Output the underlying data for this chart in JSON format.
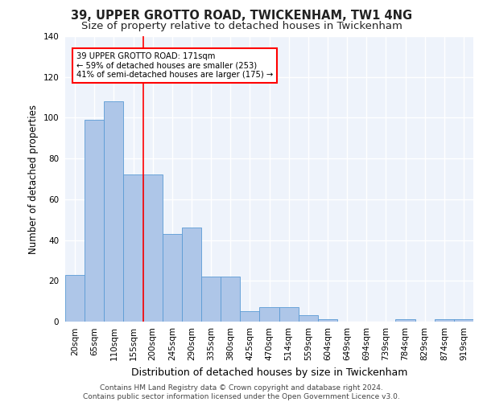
{
  "title_line1": "39, UPPER GROTTO ROAD, TWICKENHAM, TW1 4NG",
  "title_line2": "Size of property relative to detached houses in Twickenham",
  "xlabel": "Distribution of detached houses by size in Twickenham",
  "ylabel": "Number of detached properties",
  "bar_values": [
    23,
    99,
    108,
    72,
    72,
    43,
    46,
    22,
    22,
    5,
    7,
    7,
    3,
    1,
    0,
    0,
    0,
    1,
    0,
    1,
    1
  ],
  "bar_labels": [
    "20sqm",
    "65sqm",
    "110sqm",
    "155sqm",
    "200sqm",
    "245sqm",
    "290sqm",
    "335sqm",
    "380sqm",
    "425sqm",
    "470sqm",
    "514sqm",
    "559sqm",
    "604sqm",
    "649sqm",
    "694sqm",
    "739sqm",
    "784sqm",
    "829sqm",
    "874sqm",
    "919sqm"
  ],
  "bar_color": "#aec6e8",
  "bar_edge_color": "#5b9bd5",
  "background_color": "#eef3fb",
  "grid_color": "#ffffff",
  "annotation_box_text": "39 UPPER GROTTO ROAD: 171sqm\n← 59% of detached houses are smaller (253)\n41% of semi-detached houses are larger (175) →",
  "red_line_x": 3.5,
  "ylim": [
    0,
    140
  ],
  "yticks": [
    0,
    20,
    40,
    60,
    80,
    100,
    120,
    140
  ],
  "footer_line1": "Contains HM Land Registry data © Crown copyright and database right 2024.",
  "footer_line2": "Contains public sector information licensed under the Open Government Licence v3.0.",
  "title_fontsize": 10.5,
  "subtitle_fontsize": 9.5,
  "axis_label_fontsize": 8.5,
  "tick_fontsize": 7.5,
  "footer_fontsize": 6.5
}
